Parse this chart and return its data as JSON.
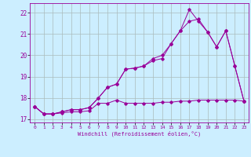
{
  "xlabel": "Windchill (Refroidissement éolien,°C)",
  "ylabel": "",
  "bg_color": "#cceeff",
  "grid_color": "#aabbbb",
  "line_color": "#990099",
  "xlim": [
    -0.5,
    23.5
  ],
  "ylim": [
    16.85,
    22.45
  ],
  "yticks": [
    17,
    18,
    19,
    20,
    21,
    22
  ],
  "xticks": [
    0,
    1,
    2,
    3,
    4,
    5,
    6,
    7,
    8,
    9,
    10,
    11,
    12,
    13,
    14,
    15,
    16,
    17,
    18,
    19,
    20,
    21,
    22,
    23
  ],
  "line1_x": [
    0,
    1,
    2,
    3,
    4,
    5,
    6,
    7,
    8,
    9,
    10,
    11,
    12,
    13,
    14,
    15,
    16,
    17,
    18,
    19,
    20,
    21,
    22,
    23
  ],
  "line1_y": [
    17.6,
    17.25,
    17.25,
    17.3,
    17.35,
    17.35,
    17.4,
    17.75,
    17.75,
    17.9,
    17.75,
    17.75,
    17.75,
    17.75,
    17.8,
    17.8,
    17.85,
    17.85,
    17.9,
    17.9,
    17.9,
    17.9,
    17.9,
    17.85
  ],
  "line2_x": [
    0,
    1,
    2,
    3,
    4,
    5,
    6,
    7,
    8,
    9,
    10,
    11,
    12,
    13,
    14,
    15,
    16,
    17,
    18,
    19,
    20,
    21,
    22,
    23
  ],
  "line2_y": [
    17.6,
    17.25,
    17.25,
    17.35,
    17.45,
    17.45,
    17.55,
    18.0,
    18.5,
    18.65,
    19.35,
    19.4,
    19.5,
    19.75,
    19.85,
    20.55,
    21.15,
    21.6,
    21.7,
    21.1,
    20.4,
    21.15,
    19.5,
    17.85
  ],
  "line3_x": [
    0,
    1,
    2,
    3,
    4,
    5,
    6,
    7,
    8,
    9,
    10,
    11,
    12,
    13,
    14,
    15,
    16,
    17,
    18,
    19,
    20,
    21,
    22,
    23
  ],
  "line3_y": [
    17.6,
    17.25,
    17.25,
    17.35,
    17.45,
    17.45,
    17.55,
    18.0,
    18.5,
    18.65,
    19.35,
    19.4,
    19.5,
    19.85,
    20.0,
    20.55,
    21.15,
    22.15,
    21.6,
    21.1,
    20.4,
    21.15,
    19.5,
    17.85
  ]
}
